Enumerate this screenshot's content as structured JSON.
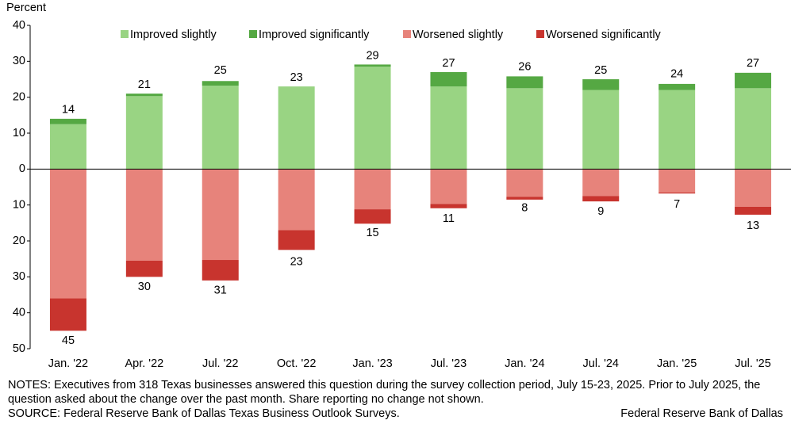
{
  "chart_data": {
    "type": "bar",
    "stacked": true,
    "y_label": "Percent",
    "categories": [
      "Jan. '22",
      "Apr. '22",
      "Jul. '22",
      "Oct. '22",
      "Jan. '23",
      "Jul. '23",
      "Jan. '24",
      "Jul. '24",
      "Jan. '25",
      "Jul. '25"
    ],
    "series": [
      {
        "name": "Improved slightly",
        "color": "#99d483",
        "values": [
          12.5,
          20.3,
          23.2,
          23,
          28.5,
          23,
          22.5,
          22,
          22,
          22.5
        ]
      },
      {
        "name": "Improved significantly",
        "color": "#55a843",
        "values": [
          1.5,
          0.7,
          1.3,
          0,
          0.6,
          4,
          3.3,
          3,
          1.7,
          4.3
        ]
      },
      {
        "name": "Worsened slightly",
        "color": "#e7837b",
        "values": [
          -36,
          -25.5,
          -25.3,
          -17,
          -11.2,
          -9.7,
          -7.7,
          -7.5,
          -6.5,
          -10.5
        ]
      },
      {
        "name": "Worsened significantly",
        "color": "#c8342e",
        "values": [
          -9,
          -4.5,
          -5.7,
          -5.5,
          -4,
          -1.2,
          -0.8,
          -1.5,
          -0.3,
          -2.2
        ]
      }
    ],
    "improved_totals": [
      14,
      21,
      25,
      23,
      29,
      27,
      26,
      25,
      24,
      27
    ],
    "worsened_totals": [
      -45,
      -30,
      -31,
      -23,
      -15,
      -11,
      -8,
      -9,
      -7,
      -13
    ],
    "worsened_totals_labels": [
      "45",
      "30",
      "31",
      "23",
      "15",
      "11",
      "8",
      "9",
      "7",
      "13"
    ],
    "ylim": [
      -50,
      40
    ],
    "yticks": [
      40,
      30,
      20,
      10,
      0,
      {
        "value": -10,
        "label": "10"
      },
      {
        "value": -20,
        "label": "20"
      },
      {
        "value": -30,
        "label": "30"
      },
      {
        "value": -40,
        "label": "40"
      },
      {
        "value": -50,
        "label": "50"
      }
    ],
    "legend": "top",
    "notes": "NOTES: Executives from 318 Texas businesses answered this question during the survey collection period, July 15-23, 2025. Prior to July 2025, the question asked about the change over the past month. Share reporting no change not shown.",
    "source": "SOURCE: Federal Reserve Bank of Dallas Texas Business Outlook Surveys.",
    "credit": "Federal Reserve Bank of Dallas"
  }
}
